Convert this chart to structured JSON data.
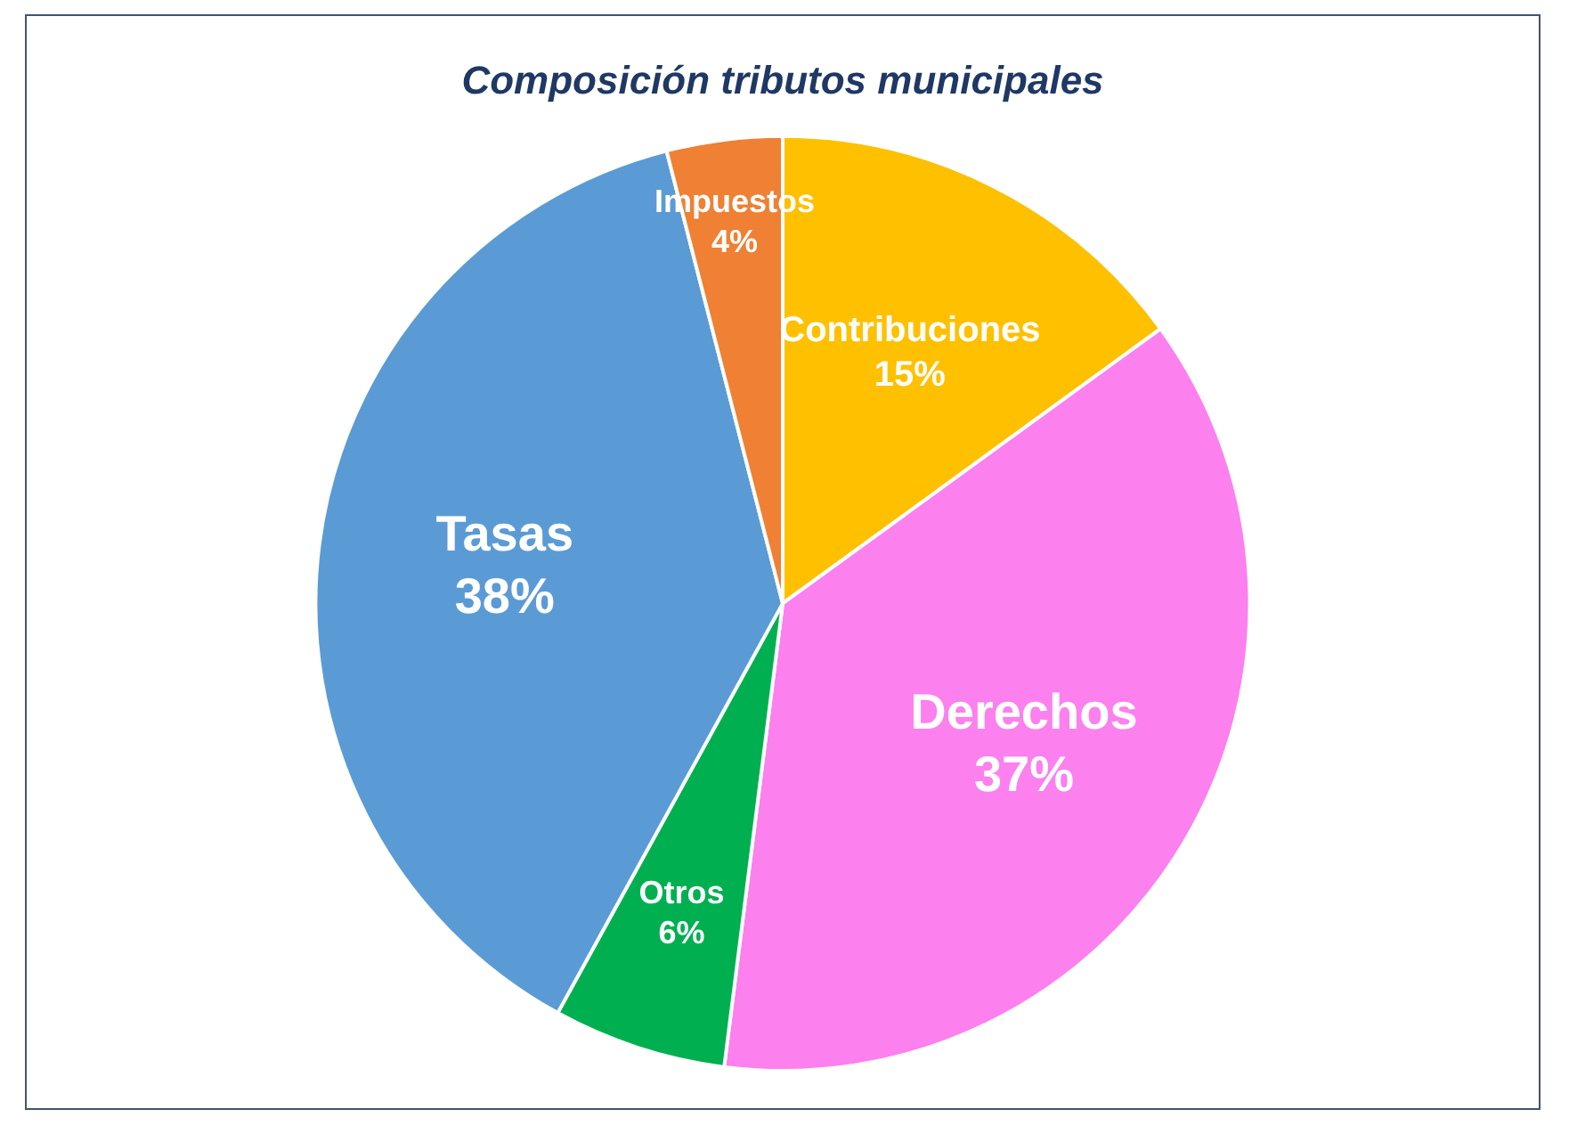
{
  "chart_data": {
    "type": "pie",
    "title": "Composición tributos municipales",
    "categories": [
      "Contribuciones",
      "Derechos",
      "Otros",
      "Tasas",
      "Impuestos"
    ],
    "values": [
      15,
      37,
      6,
      38,
      4
    ],
    "colors": [
      "#ffc000",
      "#fc80ee",
      "#00b050",
      "#5b9bd5",
      "#ef8034"
    ],
    "value_labels": [
      "15%",
      "37%",
      "6%",
      "38%",
      "4%"
    ]
  }
}
